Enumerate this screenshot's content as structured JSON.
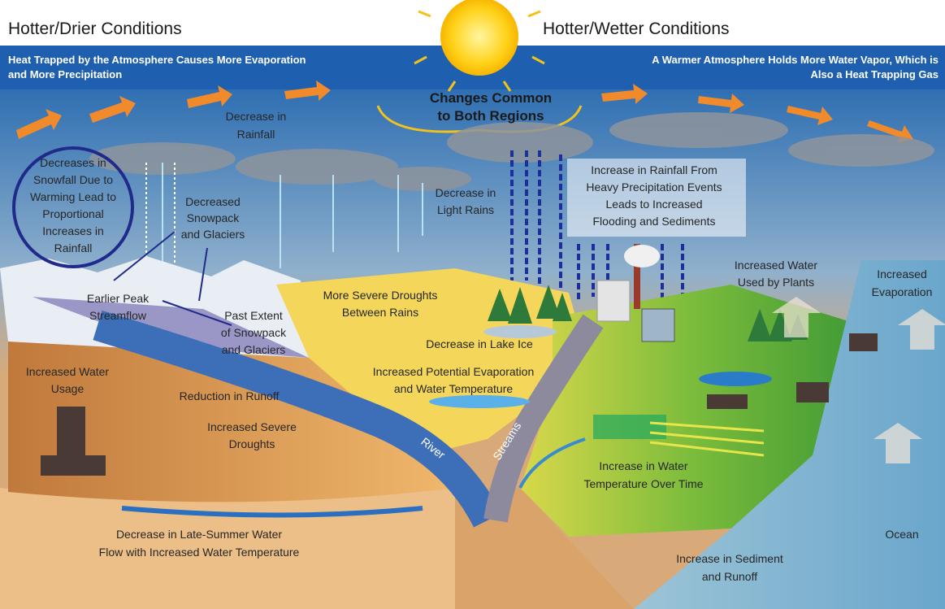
{
  "header": {
    "left_title": "Hotter/Drier Conditions",
    "right_title": "Hotter/Wetter Conditions",
    "left_banner": [
      "Heat Trapped by the Atmosphere Causes More Evaporation",
      "and More Precipitation"
    ],
    "right_banner": [
      "A Warmer Atmosphere Holds More Water Vapor, Which is",
      "Also a Heat Trapping Gas"
    ]
  },
  "center_title": [
    "Changes Common",
    "to Both Regions"
  ],
  "labels": [
    {
      "lines": [
        "Decrease in",
        "Rainfall"
      ]
    },
    {
      "lines": [
        "Decreases in",
        "Snowfall Due to",
        "Warming Lead to",
        "Proportional",
        "Increases in",
        "Rainfall"
      ]
    },
    {
      "lines": [
        "Decreased",
        "Snowpack",
        "and Glaciers"
      ]
    },
    {
      "lines": [
        "Decrease in",
        "Light Rains"
      ]
    },
    {
      "lines": [
        "Increase in Rainfall From",
        "Heavy Precipitation Events",
        "Leads to Increased",
        "Flooding and Sediments"
      ]
    },
    {
      "lines": [
        "Increased Water",
        "Used by Plants"
      ]
    },
    {
      "lines": [
        "Increased",
        "Evaporation"
      ]
    },
    {
      "lines": [
        "Earlier Peak",
        "Streamflow"
      ]
    },
    {
      "lines": [
        "Past Extent",
        "of Snowpack",
        "and Glaciers"
      ]
    },
    {
      "lines": [
        "More Severe Droughts",
        "Between Rains"
      ]
    },
    {
      "lines": [
        "Decrease in Lake Ice"
      ]
    },
    {
      "lines": [
        "Increased Potential Evaporation",
        "and Water Temperature"
      ]
    },
    {
      "lines": [
        "Increased Water",
        "Usage"
      ]
    },
    {
      "lines": [
        "Reduction in Runoff"
      ]
    },
    {
      "lines": [
        "Increased Severe",
        "Droughts"
      ]
    },
    {
      "lines": [
        "River"
      ]
    },
    {
      "lines": [
        "Streams"
      ]
    },
    {
      "lines": [
        "Increase in Water",
        "Temperature Over Time"
      ]
    },
    {
      "lines": [
        "Decrease in Late-Summer Water",
        "Flow with Increased Water Temperature"
      ]
    },
    {
      "lines": [
        "Ocean"
      ]
    },
    {
      "lines": [
        "Increase in Sediment",
        "and Runoff"
      ]
    }
  ]
}
